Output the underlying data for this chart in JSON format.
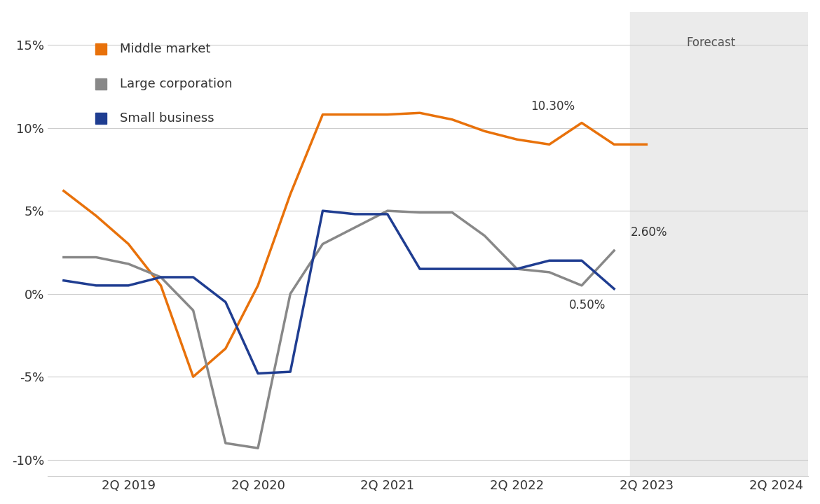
{
  "x_positions": [
    0,
    1,
    2,
    3,
    4,
    5,
    6,
    7,
    8,
    9,
    10,
    11,
    12,
    13,
    14,
    15,
    16,
    17,
    18,
    19,
    20,
    21,
    22
  ],
  "middle_market": [
    6.2,
    4.7,
    3.0,
    0.5,
    -5.0,
    -3.3,
    0.5,
    6.0,
    10.8,
    10.8,
    10.8,
    10.9,
    10.5,
    9.8,
    9.3,
    9.0,
    10.3,
    9.0,
    9.0,
    null,
    null,
    null,
    null
  ],
  "large_corporation": [
    2.2,
    2.2,
    1.8,
    1.0,
    -1.0,
    -9.0,
    -9.3,
    0.0,
    3.0,
    4.0,
    5.0,
    4.9,
    4.9,
    3.5,
    1.5,
    1.3,
    0.5,
    2.6,
    null,
    null,
    null,
    null,
    null
  ],
  "small_business": [
    0.8,
    0.5,
    0.5,
    1.0,
    1.0,
    -0.5,
    -4.8,
    -4.7,
    5.0,
    4.8,
    4.8,
    1.5,
    1.5,
    1.5,
    1.5,
    2.0,
    2.0,
    0.3,
    null,
    null,
    null,
    null,
    null
  ],
  "xtick_positions": [
    2,
    6,
    10,
    14,
    18,
    22
  ],
  "xtick_labels": [
    "2Q 2019",
    "2Q 2020",
    "2Q 2021",
    "2Q 2022",
    "2Q 2023",
    "2Q 2024"
  ],
  "colors": {
    "middle_market": "#E8710A",
    "large_corporation": "#888888",
    "small_business": "#1f3d91"
  },
  "ylim": [
    -11,
    17
  ],
  "yticks": [
    -10,
    -5,
    0,
    5,
    10,
    15
  ],
  "ytick_labels": [
    "-10%",
    "-5%",
    "0%",
    "5%",
    "10%",
    "15%"
  ],
  "forecast_start_x": 17.5,
  "xlim_max": 23.0,
  "forecast_label": "Forecast",
  "legend": [
    {
      "label": "Middle market",
      "color": "#E8710A"
    },
    {
      "label": "Large corporation",
      "color": "#888888"
    },
    {
      "label": "Small business",
      "color": "#1f3d91"
    }
  ],
  "background_color": "#FFFFFF",
  "forecast_bg_color": "#EBEBEB",
  "line_width": 2.5
}
